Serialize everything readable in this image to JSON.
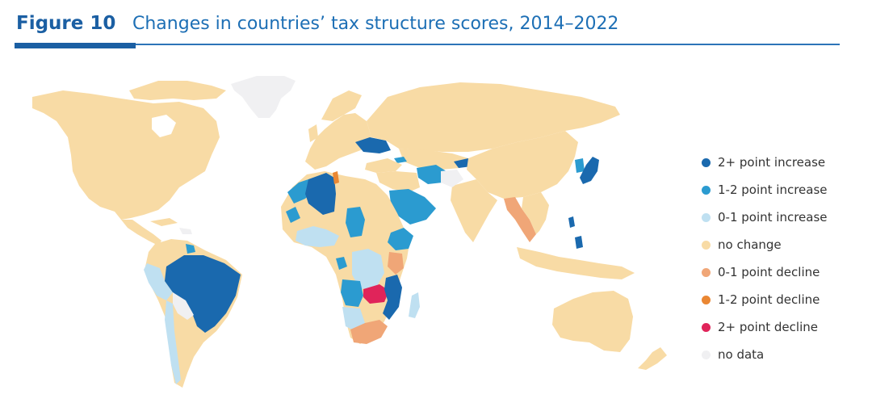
{
  "header": {
    "figure_label": "Figure 10",
    "title": "Changes in countries’ tax structure scores, 2014–2022"
  },
  "colors": {
    "brand_blue": "#1b5fa3",
    "strong_increase": "#1a69ae",
    "increase": "#2b9bd0",
    "slight_increase": "#bfe0f1",
    "no_change": "#f8dba5",
    "slight_decline": "#f0a677",
    "decline": "#ea8733",
    "strong_decline": "#e0245a",
    "no_data": "#f0f0f2"
  },
  "legend": {
    "items": [
      {
        "label": "2+ point increase",
        "color": "#1a69ae"
      },
      {
        "label": "1-2 point increase",
        "color": "#2b9bd0"
      },
      {
        "label": "0-1 point increase",
        "color": "#bfe0f1"
      },
      {
        "label": "no change",
        "color": "#f8dba5"
      },
      {
        "label": "0-1 point decline",
        "color": "#f0a677"
      },
      {
        "label": "1-2 point decline",
        "color": "#ea8733"
      },
      {
        "label": "2+ point decline",
        "color": "#e0245a"
      },
      {
        "label": "no data",
        "color": "#f0f0f2"
      }
    ]
  }
}
